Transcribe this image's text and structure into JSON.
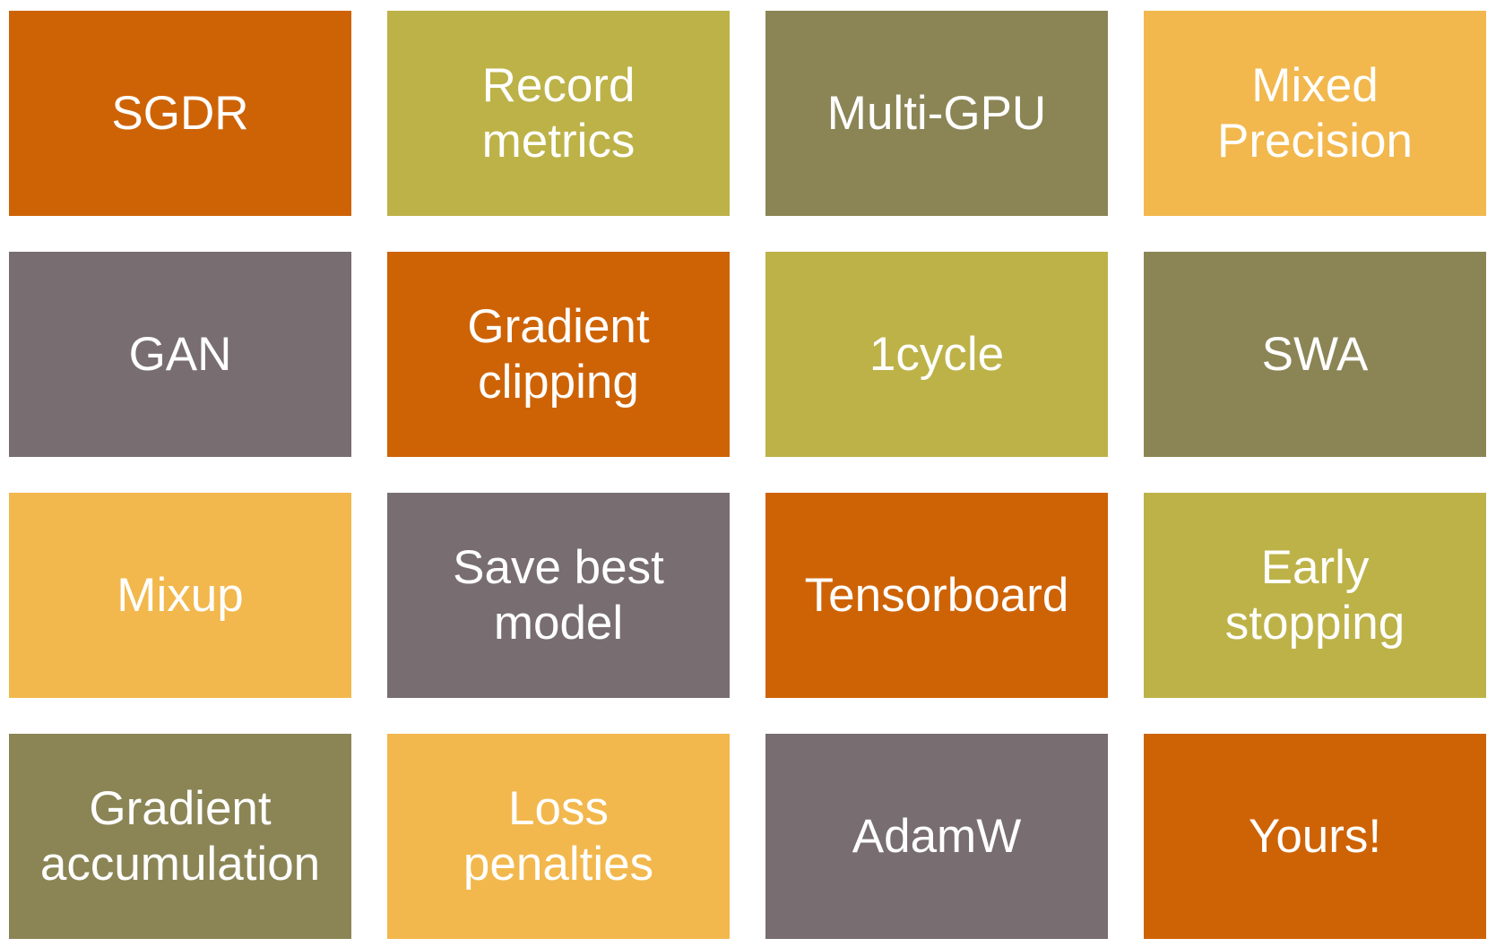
{
  "slide": {
    "background_color": "#FFFFFF",
    "text_color": "#FFFFFF"
  },
  "palette": {
    "orange": "#CE6306",
    "khaki": "#BDB248",
    "sage": "#8B8556",
    "gold": "#F2B84D",
    "gray": "#786D70"
  },
  "tiles": [
    {
      "label": "SGDR",
      "color": "orange"
    },
    {
      "label": "Record\nmetrics",
      "color": "khaki"
    },
    {
      "label": "Multi-GPU",
      "color": "sage"
    },
    {
      "label": "Mixed\nPrecision",
      "color": "gold"
    },
    {
      "label": "GAN",
      "color": "gray"
    },
    {
      "label": "Gradient\nclipping",
      "color": "orange"
    },
    {
      "label": "1cycle",
      "color": "khaki"
    },
    {
      "label": "SWA",
      "color": "sage"
    },
    {
      "label": "Mixup",
      "color": "gold"
    },
    {
      "label": "Save best\nmodel",
      "color": "gray"
    },
    {
      "label": "Tensorboard",
      "color": "orange"
    },
    {
      "label": "Early\nstopping",
      "color": "khaki"
    },
    {
      "label": "Gradient\naccumulation",
      "color": "sage"
    },
    {
      "label": "Loss\npenalties",
      "color": "gold"
    },
    {
      "label": "AdamW",
      "color": "gray"
    },
    {
      "label": "Yours!",
      "color": "orange"
    }
  ]
}
